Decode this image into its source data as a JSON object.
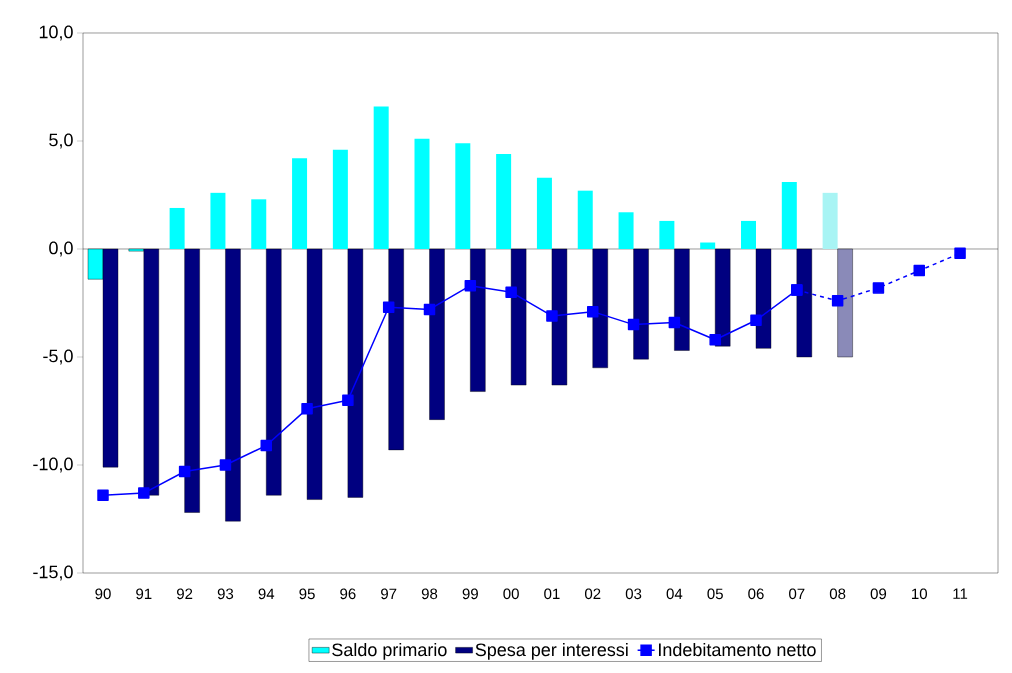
{
  "chart_data": {
    "type": "bar",
    "categories": [
      "90",
      "91",
      "92",
      "93",
      "94",
      "95",
      "96",
      "97",
      "98",
      "99",
      "00",
      "01",
      "02",
      "03",
      "04",
      "05",
      "06",
      "07",
      "08",
      "09",
      "10",
      "11"
    ],
    "series": [
      {
        "name": "Saldo primario",
        "color": "#00ffff",
        "colors": [
          "#00ffff",
          "#00ffff",
          "#00ffff",
          "#00ffff",
          "#00ffff",
          "#00ffff",
          "#00ffff",
          "#00ffff",
          "#00ffff",
          "#00ffff",
          "#00ffff",
          "#00ffff",
          "#00ffff",
          "#00ffff",
          "#00ffff",
          "#00ffff",
          "#00ffff",
          "#00ffff",
          "#a8f4f4",
          null,
          null,
          null
        ],
        "values": [
          -1.4,
          -0.1,
          1.9,
          2.6,
          2.3,
          4.2,
          4.6,
          6.6,
          5.1,
          4.9,
          4.4,
          3.3,
          2.7,
          1.7,
          1.3,
          0.3,
          1.3,
          3.1,
          2.6,
          null,
          null,
          null
        ]
      },
      {
        "name": "Spesa per interessi",
        "color": "#000080",
        "colors": [
          "#000080",
          "#000080",
          "#000080",
          "#000080",
          "#000080",
          "#000080",
          "#000080",
          "#000080",
          "#000080",
          "#000080",
          "#000080",
          "#000080",
          "#000080",
          "#000080",
          "#000080",
          "#000080",
          "#000080",
          "#000080",
          "#8a8ab8",
          null,
          null,
          null
        ],
        "values": [
          -10.1,
          -11.4,
          -12.2,
          -12.6,
          -11.4,
          -11.6,
          -11.5,
          -9.3,
          -7.9,
          -6.6,
          -6.3,
          -6.3,
          -5.5,
          -5.1,
          -4.7,
          -4.5,
          -4.6,
          -5.0,
          -5.0,
          null,
          null,
          null
        ]
      },
      {
        "name": "Indebitamento netto",
        "type": "line",
        "color": "#0000ff",
        "line_style": "solid",
        "values": [
          -11.4,
          -11.3,
          -10.3,
          -10.0,
          -9.1,
          -7.4,
          -7.0,
          -2.7,
          -2.8,
          -1.7,
          -2.0,
          -3.1,
          -2.9,
          -3.5,
          -3.4,
          -4.2,
          -3.3,
          -1.9,
          null,
          null,
          null,
          null
        ]
      },
      {
        "type": "line",
        "color": "#0000ff",
        "line_style": "dashed",
        "values": [
          null,
          null,
          null,
          null,
          null,
          null,
          null,
          null,
          null,
          null,
          null,
          null,
          null,
          null,
          null,
          null,
          null,
          -1.9,
          -2.4,
          -1.8,
          -1.0,
          -0.2
        ]
      }
    ],
    "ylim": [
      -15,
      10
    ],
    "yticks": [
      {
        "value": -15,
        "label": "-15,0"
      },
      {
        "value": -10,
        "label": "-10,0"
      },
      {
        "value": -5,
        "label": "-5,0"
      },
      {
        "value": 0,
        "label": "0,0"
      },
      {
        "value": 5,
        "label": "5,0"
      },
      {
        "value": 10,
        "label": "10,0"
      }
    ],
    "ref_lines": [
      {
        "axis": "y",
        "value": 0,
        "color": "#000000"
      }
    ],
    "legend": "bottom",
    "marker": "square",
    "grid": false
  }
}
